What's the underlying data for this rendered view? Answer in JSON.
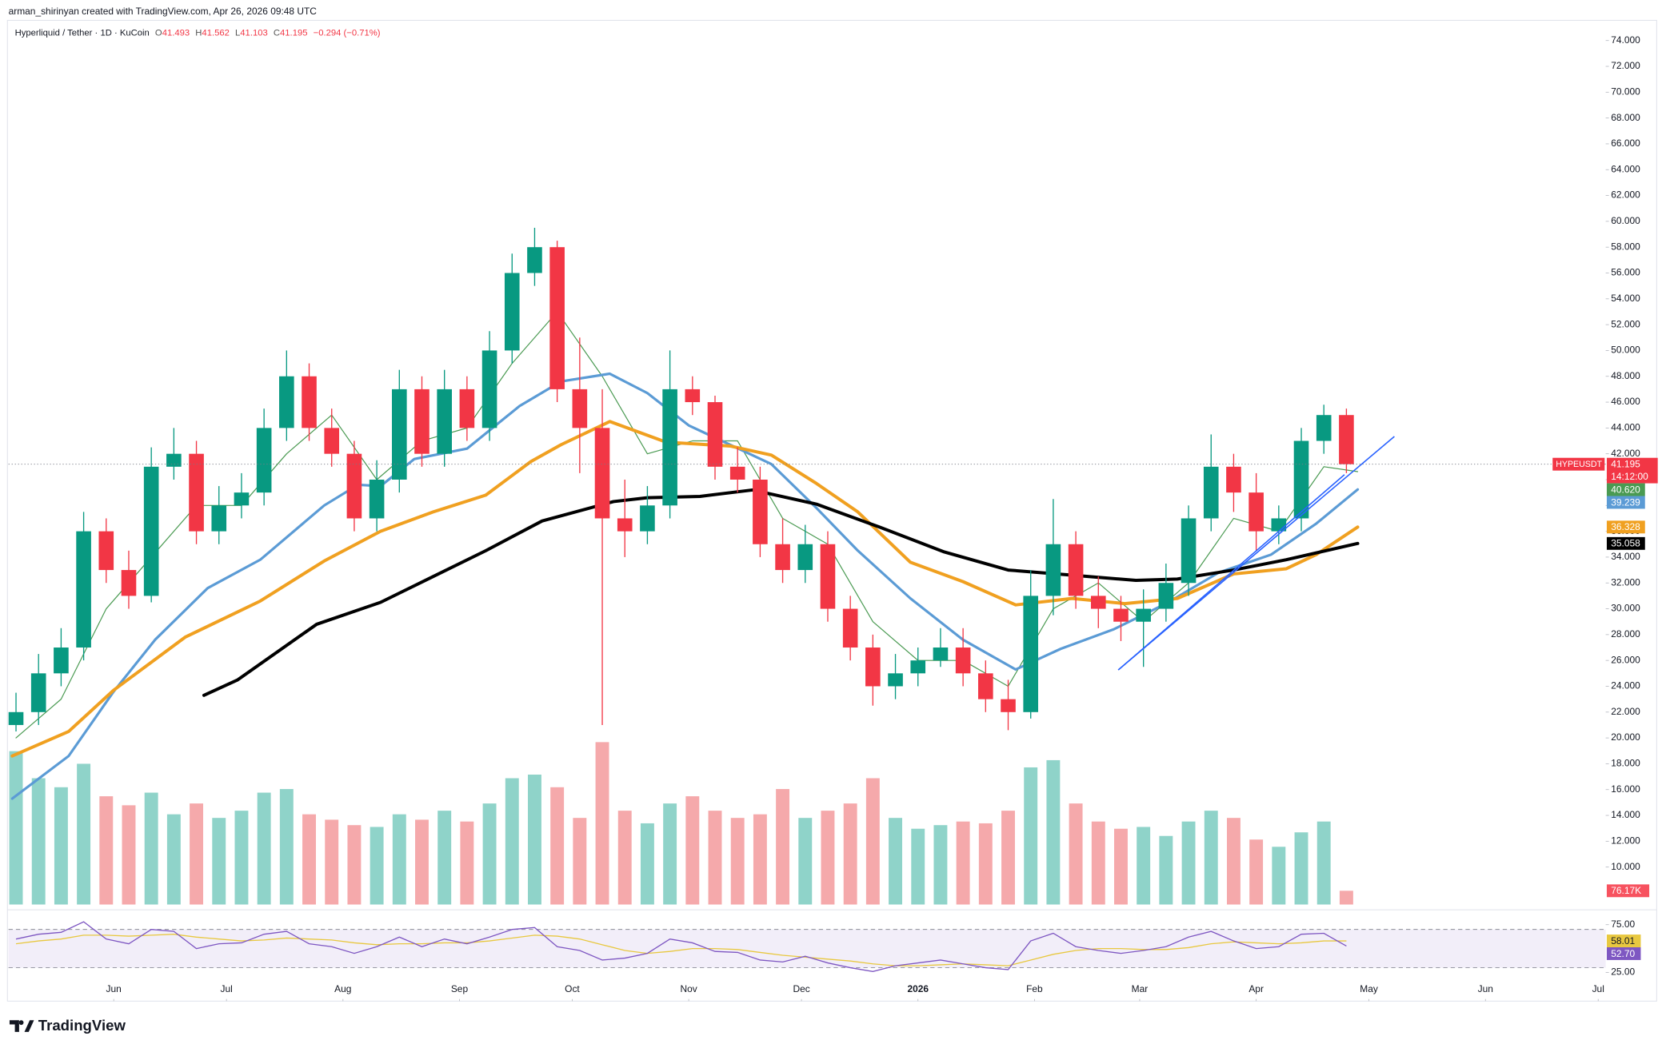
{
  "header": {
    "attribution": "arman_shirinyan created with TradingView.com, Apr 26, 2026 09:48 UTC",
    "symbol": "Hyperliquid / Tether · 1D · KuCoin",
    "ohlc": [
      {
        "key": "O",
        "value": "41.493"
      },
      {
        "key": "H",
        "value": "41.562"
      },
      {
        "key": "L",
        "value": "41.103"
      },
      {
        "key": "C",
        "value": "41.195"
      }
    ],
    "change": "−0.294 (−0.71%)"
  },
  "footer": {
    "logo": "TradingView"
  },
  "chart_data": {
    "type": "candlestick",
    "x": [
      1,
      7,
      13,
      19,
      25,
      31,
      37,
      43,
      49,
      55,
      61,
      67,
      73,
      79,
      85,
      91,
      97,
      103,
      109,
      115,
      121,
      127,
      133,
      139,
      145,
      151,
      157,
      163,
      169,
      175,
      181,
      187,
      193,
      199,
      205,
      211,
      217,
      223,
      229,
      235,
      241,
      247,
      253,
      259,
      265,
      271,
      277,
      283,
      289,
      295,
      301,
      307,
      313,
      319,
      325,
      331,
      337,
      343,
      349,
      355
    ],
    "xlim": [
      -1,
      424
    ],
    "xticks": [
      {
        "value": 27,
        "label": "Jun"
      },
      {
        "value": 57,
        "label": "Jul"
      },
      {
        "value": 88,
        "label": "Aug"
      },
      {
        "value": 119,
        "label": "Sep"
      },
      {
        "value": 149,
        "label": "Oct"
      },
      {
        "value": 180,
        "label": "Nov"
      },
      {
        "value": 210,
        "label": "Dec"
      },
      {
        "value": 241,
        "label": "2026"
      },
      {
        "value": 272,
        "label": "Feb"
      },
      {
        "value": 300,
        "label": "Mar"
      },
      {
        "value": 331,
        "label": "Apr"
      },
      {
        "value": 361,
        "label": "May"
      },
      {
        "value": 392,
        "label": "Jun"
      },
      {
        "value": 422,
        "label": "Jul"
      }
    ],
    "open": [
      21,
      22,
      25,
      27,
      36,
      33,
      31,
      41,
      42,
      36,
      38,
      39,
      44,
      48,
      44,
      42,
      37,
      40,
      47,
      42,
      47,
      44,
      50,
      56,
      58,
      47,
      44,
      37,
      36,
      38,
      47,
      46,
      41,
      40,
      35,
      33,
      35,
      30,
      27,
      24,
      25,
      26,
      27,
      25,
      23,
      22,
      31,
      35,
      31,
      30,
      29,
      30,
      32,
      37,
      41,
      39,
      36,
      37,
      43,
      45
    ],
    "high": [
      23.5,
      26.5,
      28.5,
      37.5,
      37,
      34.5,
      42.5,
      44,
      43,
      39.5,
      40.5,
      45.5,
      50,
      49,
      45.5,
      43,
      41.5,
      48.5,
      48,
      48.5,
      48,
      51.5,
      57.5,
      59.5,
      58.5,
      51,
      47,
      40,
      39.5,
      50,
      48,
      46.5,
      42.5,
      41,
      37,
      36.5,
      36,
      31,
      28,
      26.5,
      27,
      28.5,
      28.5,
      26,
      24.5,
      33,
      38.5,
      36,
      32.5,
      31,
      31.5,
      33.5,
      38,
      43.5,
      42,
      40.5,
      38,
      44,
      45.8,
      45.5
    ],
    "low": [
      20.5,
      21,
      24,
      26,
      32,
      30,
      30.5,
      40,
      35,
      35,
      37,
      38,
      43,
      43,
      41,
      36,
      36,
      39,
      41,
      41,
      43,
      43,
      49,
      55,
      46,
      40.5,
      21,
      34,
      35,
      37,
      45,
      40,
      39,
      34,
      32,
      32,
      29,
      26,
      22.5,
      23,
      24,
      25.5,
      24,
      22,
      20.6,
      21.5,
      29.5,
      30,
      28.5,
      27.5,
      25.5,
      29,
      31,
      36,
      37.5,
      34.5,
      35,
      36,
      42,
      40.5
    ],
    "close": [
      22,
      25,
      27,
      36,
      33,
      31,
      41,
      42,
      36,
      38,
      39,
      44,
      48,
      44,
      42,
      37,
      40,
      47,
      42,
      47,
      44,
      50,
      56,
      58,
      47,
      44,
      37,
      36,
      38,
      47,
      46,
      41,
      40,
      35,
      33,
      35,
      30,
      27,
      24,
      25,
      26,
      27,
      25,
      23,
      22,
      31,
      35,
      31,
      30,
      29,
      30,
      32,
      37,
      41,
      39,
      36,
      37,
      43,
      45,
      41.195
    ],
    "up_color": "#089981",
    "down_color": "#f23645",
    "ylim": [
      7.1,
      75.48
    ],
    "yticks": [
      {
        "value": 10,
        "label": "10.000"
      },
      {
        "value": 12,
        "label": "12.000"
      },
      {
        "value": 14,
        "label": "14.000"
      },
      {
        "value": 16,
        "label": "16.000"
      },
      {
        "value": 18,
        "label": "18.000"
      },
      {
        "value": 20,
        "label": "20.000"
      },
      {
        "value": 22,
        "label": "22.000"
      },
      {
        "value": 24,
        "label": "24.000"
      },
      {
        "value": 26,
        "label": "26.000"
      },
      {
        "value": 28,
        "label": "28.000"
      },
      {
        "value": 30,
        "label": "30.000"
      },
      {
        "value": 32,
        "label": "32.000"
      },
      {
        "value": 34,
        "label": "34.000"
      },
      {
        "value": 36,
        "label": "36.000"
      },
      {
        "value": 38,
        "label": "38.000"
      },
      {
        "value": 40,
        "label": "40.000"
      },
      {
        "value": 42,
        "label": "42.000"
      },
      {
        "value": 44,
        "label": "44.000"
      },
      {
        "value": 46,
        "label": "46.000"
      },
      {
        "value": 48,
        "label": "48.000"
      },
      {
        "value": 50,
        "label": "50.000"
      },
      {
        "value": 52,
        "label": "52.000"
      },
      {
        "value": 54,
        "label": "54.000"
      },
      {
        "value": 56,
        "label": "56.000"
      },
      {
        "value": 58,
        "label": "58.000"
      },
      {
        "value": 60,
        "label": "60.000"
      },
      {
        "value": 62,
        "label": "62.000"
      },
      {
        "value": 64,
        "label": "64.000"
      },
      {
        "value": 66,
        "label": "66.000"
      },
      {
        "value": 68,
        "label": "68.000"
      },
      {
        "value": 70,
        "label": "70.000"
      },
      {
        "value": 72,
        "label": "72.000"
      },
      {
        "value": 74,
        "label": "74.000"
      }
    ],
    "grid": false,
    "symbol_label": "HYPEUSDT",
    "last_price": {
      "value": 41.195,
      "label": "41.195"
    },
    "countdown": "14:12:00",
    "moving_averages": [
      {
        "color": "#4a9a52",
        "width": 0.9,
        "last_label": "40.620",
        "x": [
          1,
          13,
          25,
          37,
          49,
          61,
          73,
          85,
          97,
          109,
          121,
          133,
          145,
          157,
          169,
          181,
          193,
          205,
          217,
          229,
          241,
          253,
          265,
          277,
          289,
          301,
          313,
          325,
          337,
          349,
          358
        ],
        "values": [
          20,
          23,
          30,
          34,
          38,
          38,
          42,
          45,
          40,
          43,
          44,
          49,
          53,
          48,
          42,
          43,
          43,
          37,
          35,
          29,
          26,
          26,
          24,
          30,
          32,
          29,
          32,
          37,
          36,
          41,
          40.62
        ]
      },
      {
        "color": "#5b9bd5",
        "width": 2.4,
        "last_label": "39.239",
        "x": [
          0,
          15,
          27,
          38,
          52,
          66,
          83,
          92,
          98,
          107,
          121,
          135,
          146,
          159,
          169,
          180,
          191,
          202,
          214,
          225,
          239,
          253,
          267,
          279,
          293,
          307,
          321,
          335,
          347,
          358
        ],
        "values": [
          15.3,
          18.6,
          23.6,
          27.6,
          31.6,
          33.8,
          38,
          39.6,
          39.5,
          41.6,
          42.4,
          45.7,
          47.6,
          48.2,
          46.7,
          44.2,
          42.7,
          41.2,
          37.8,
          34.5,
          30.8,
          27.6,
          25.3,
          26.9,
          28.4,
          30.4,
          32.8,
          34.2,
          36.6,
          39.239
        ]
      },
      {
        "color": "#f0a020",
        "width": 3,
        "last_label": "36.328",
        "x": [
          0,
          15,
          27,
          46,
          66,
          83,
          98,
          112,
          126,
          138,
          146,
          159,
          174,
          191,
          202,
          214,
          225,
          239,
          253,
          267,
          282,
          296,
          310,
          325,
          339,
          347,
          358
        ],
        "values": [
          18.6,
          20.5,
          23.7,
          27.8,
          30.6,
          33.7,
          36,
          37.5,
          38.8,
          41.4,
          42.7,
          44.5,
          42.9,
          42.6,
          41.9,
          39.7,
          37.5,
          33.6,
          32.1,
          30.3,
          30.8,
          30.4,
          30.8,
          32.7,
          33.1,
          34.2,
          36.328
        ]
      },
      {
        "color": "#000000",
        "width": 3,
        "last_label": "35.058",
        "x": [
          51,
          60,
          81,
          98,
          112,
          126,
          141,
          160,
          169,
          183,
          197,
          214,
          231,
          248,
          265,
          282,
          299,
          310,
          325,
          339,
          358
        ],
        "values": [
          23.3,
          24.5,
          28.8,
          30.5,
          32.5,
          34.5,
          36.8,
          38.3,
          38.6,
          38.7,
          39.2,
          38.1,
          36.3,
          34.4,
          33,
          32.6,
          32.2,
          32.3,
          33,
          33.8,
          35.058
        ]
      }
    ],
    "volume": {
      "ylim": [
        0,
        1000
      ],
      "last_label": "76.17K",
      "up_color": "#8fd3c9",
      "down_color": "#f5a9ab",
      "values": [
        850,
        700,
        650,
        780,
        600,
        550,
        620,
        500,
        560,
        480,
        520,
        620,
        640,
        500,
        470,
        440,
        430,
        500,
        470,
        520,
        460,
        560,
        700,
        720,
        650,
        480,
        900,
        520,
        450,
        560,
        600,
        520,
        480,
        500,
        640,
        480,
        520,
        560,
        700,
        480,
        420,
        440,
        460,
        450,
        520,
        760,
        800,
        560,
        460,
        420,
        430,
        380,
        460,
        520,
        480,
        360,
        320,
        400,
        460,
        76.17
      ]
    },
    "rsi": {
      "ylim": [
        22.8,
        87.2
      ],
      "yticks": [
        {
          "value": 75,
          "label": "75.00"
        },
        {
          "value": 25,
          "label": "25.00"
        }
      ],
      "band": [
        30,
        70
      ],
      "color": "#7e57c2",
      "ma_color": "#e8c840",
      "last_label": "52.70",
      "ma_last_label": "58.01",
      "values": [
        60,
        65,
        67,
        78,
        60,
        55,
        70,
        68,
        50,
        55,
        56,
        65,
        68,
        55,
        52,
        45,
        52,
        62,
        52,
        60,
        55,
        62,
        70,
        72,
        52,
        48,
        38,
        40,
        45,
        60,
        56,
        47,
        46,
        38,
        36,
        42,
        35,
        30,
        26,
        32,
        35,
        38,
        34,
        30,
        28,
        58,
        66,
        52,
        48,
        45,
        48,
        52,
        62,
        68,
        58,
        50,
        52,
        65,
        66,
        52.7
      ],
      "ma_values": [
        55,
        58,
        60,
        64,
        64,
        63,
        64,
        65,
        62,
        60,
        58,
        59,
        61,
        60,
        59,
        56,
        54,
        55,
        55,
        56,
        56,
        58,
        61,
        64,
        63,
        60,
        54,
        48,
        45,
        47,
        50,
        50,
        49,
        46,
        43,
        41,
        39,
        37,
        34,
        32,
        32,
        33,
        34,
        33,
        32,
        38,
        44,
        48,
        50,
        50,
        49,
        49,
        51,
        55,
        57,
        56,
        55,
        56,
        58,
        58.01
      ]
    }
  }
}
